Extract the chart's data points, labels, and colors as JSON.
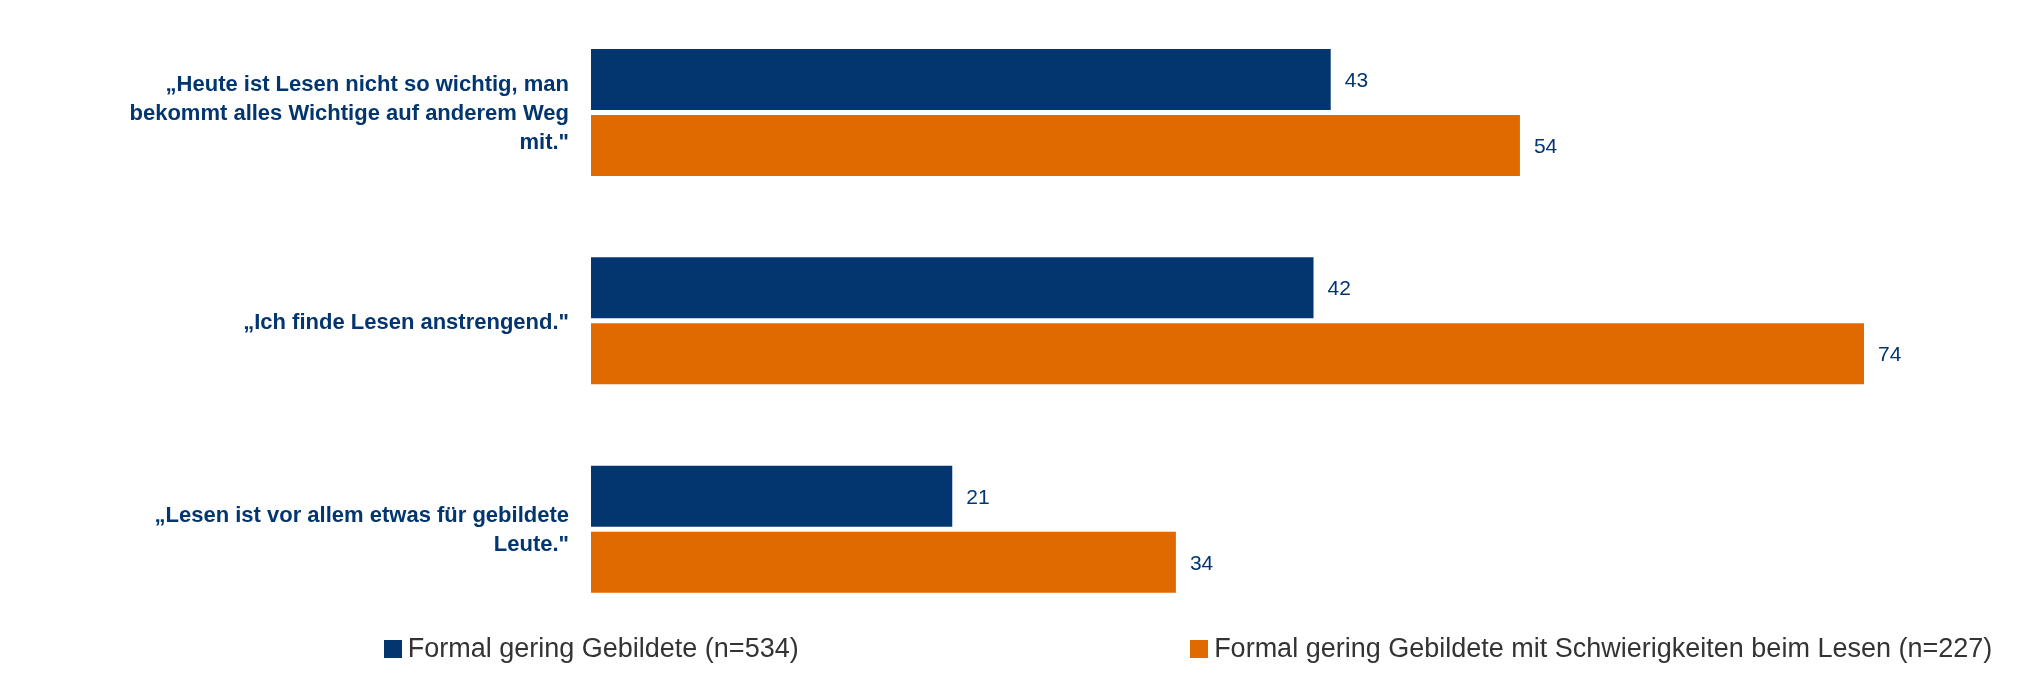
{
  "chart_data": {
    "type": "bar",
    "orientation": "horizontal",
    "categories": [
      "„Heute ist Lesen nicht so wichtig, man bekommt alles Wichtige auf anderem Weg mit.\"",
      "„Ich finde Lesen anstrengend.\"",
      "„Lesen ist vor allem etwas für gebildete Leute.\""
    ],
    "series": [
      {
        "name": "Formal gering Gebildete (n=534)",
        "color": "#03366f",
        "values": [
          43,
          42,
          21
        ]
      },
      {
        "name": "Formal gering Gebildete mit Schwierigkeiten beim Lesen (n=227)",
        "color": "#e06a00",
        "values": [
          54,
          74,
          34
        ]
      }
    ],
    "data_labels": true,
    "legend": "bottom"
  }
}
